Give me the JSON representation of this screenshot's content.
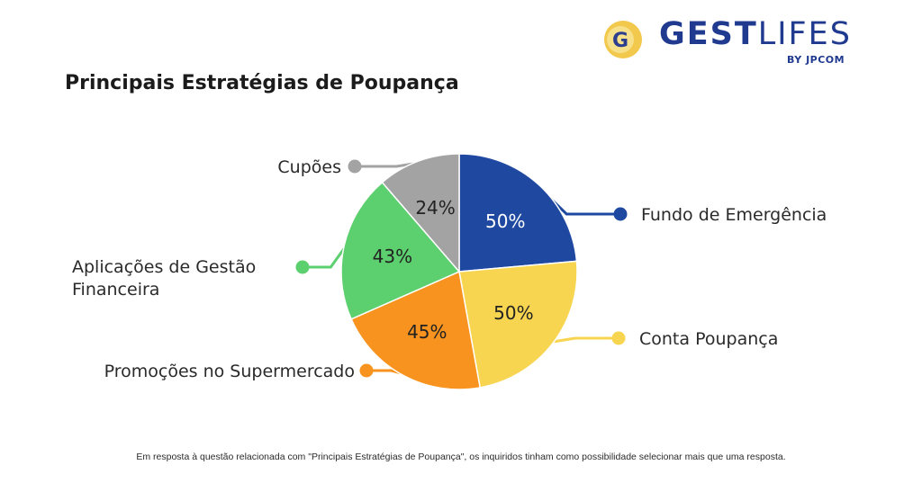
{
  "brand": {
    "name_bold": "GEST",
    "name_light": "LIFES",
    "sub": "BY JPCOM",
    "logo_letter": "G",
    "colors": {
      "text": "#1f3a8f",
      "mark_gold": "#f2c94c",
      "mark_blue": "#2c3f8f"
    }
  },
  "title": "Principais Estratégias de Poupança",
  "footnote": "Em resposta à questão relacionada com \"Principais Estratégias de Poupança\", os inquiridos tinham como possibilidade selecionar mais que uma resposta.",
  "chart_data": {
    "type": "pie",
    "title": "Principais Estratégias de Poupança",
    "slices": [
      {
        "label": "Fundo de Emergência",
        "value": 50,
        "display": "50%",
        "color": "#1f49a1",
        "text_color": "#ffffff"
      },
      {
        "label": "Conta Poupança",
        "value": 50,
        "display": "50%",
        "color": "#f7d550",
        "text_color": "#222222"
      },
      {
        "label": "Promoções no Supermercado",
        "value": 45,
        "display": "45%",
        "color": "#f7931e",
        "text_color": "#222222"
      },
      {
        "label": "Aplicações de Gestão Financeira",
        "value": 43,
        "display": "43%",
        "color": "#5ccf6e",
        "text_color": "#222222"
      },
      {
        "label": "Cupões",
        "value": 24,
        "display": "24%",
        "color": "#a3a3a3",
        "text_color": "#222222"
      }
    ]
  }
}
